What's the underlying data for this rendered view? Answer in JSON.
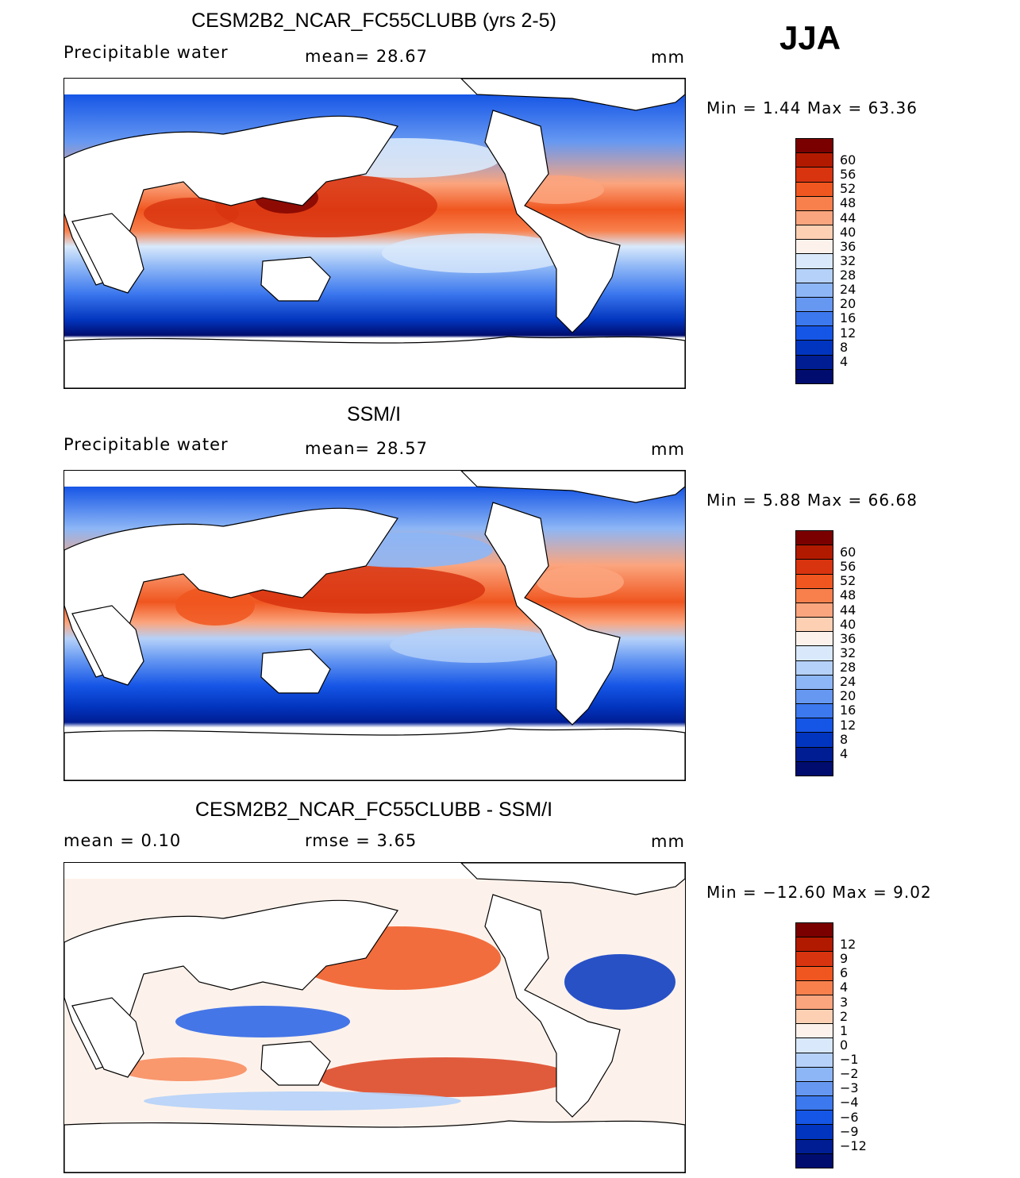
{
  "season": "JJA",
  "panels": [
    {
      "title": "CESM2B2_NCAR_FC55CLUBB (yrs 2-5)",
      "variable": "Precipitable water",
      "stat1": "mean=   28.67",
      "stat2": "",
      "units": "mm",
      "minmax": "Min =    1.44  Max =    63.36",
      "colorbar": {
        "colors": [
          "#7a0000",
          "#b21a00",
          "#d83410",
          "#f0561f",
          "#f8804d",
          "#fba57e",
          "#fdd0b3",
          "#fdf2eb",
          "#d9e9fb",
          "#b5d1f9",
          "#8db6f6",
          "#6698f2",
          "#3c78ee",
          "#1656e6",
          "#0235bf",
          "#001d93",
          "#000d6e"
        ],
        "labels": [
          "60",
          "56",
          "52",
          "48",
          "44",
          "40",
          "36",
          "32",
          "28",
          "24",
          "20",
          "16",
          "12",
          "8",
          "4"
        ]
      }
    },
    {
      "title": "SSM/I",
      "variable": "Precipitable water",
      "stat1": "mean=   28.57",
      "stat2": "",
      "units": "mm",
      "minmax": "Min =    5.88  Max =    66.68",
      "colorbar": {
        "colors": [
          "#7a0000",
          "#b21a00",
          "#d83410",
          "#f0561f",
          "#f8804d",
          "#fba57e",
          "#fdd0b3",
          "#fdf2eb",
          "#d9e9fb",
          "#b5d1f9",
          "#8db6f6",
          "#6698f2",
          "#3c78ee",
          "#1656e6",
          "#0235bf",
          "#001d93",
          "#000d6e"
        ],
        "labels": [
          "60",
          "56",
          "52",
          "48",
          "44",
          "40",
          "36",
          "32",
          "28",
          "24",
          "20",
          "16",
          "12",
          "8",
          "4"
        ]
      }
    },
    {
      "title": "CESM2B2_NCAR_FC55CLUBB - SSM/I",
      "variable": "mean =    0.10",
      "stat1": "rmse =    3.65",
      "stat2": "",
      "units": "mm",
      "minmax": "Min = −12.60  Max =     9.02",
      "colorbar": {
        "colors": [
          "#7a0000",
          "#b21a00",
          "#d83410",
          "#f0561f",
          "#f8804d",
          "#fba57e",
          "#fdd0b3",
          "#fdf2eb",
          "#d9e9fb",
          "#b5d1f9",
          "#8db6f6",
          "#6698f2",
          "#3c78ee",
          "#1656e6",
          "#0235bf",
          "#001d93",
          "#000d6e"
        ],
        "labels": [
          "12",
          "9",
          "6",
          "4",
          "3",
          "2",
          "1",
          "0",
          "−1",
          "−2",
          "−3",
          "−4",
          "−6",
          "−9",
          "−12"
        ]
      }
    }
  ]
}
